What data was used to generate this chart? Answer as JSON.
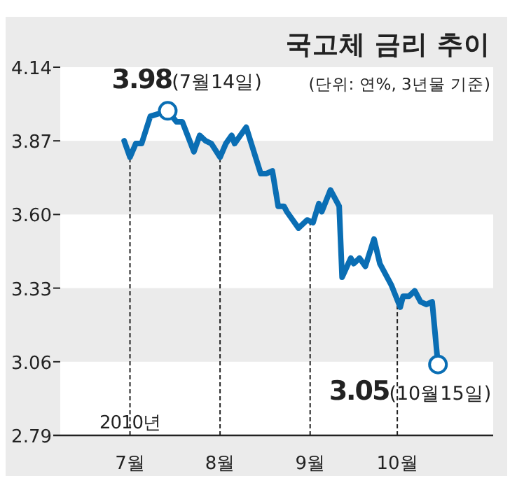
{
  "chart_data": {
    "type": "line",
    "title": "국고체 금리 추이",
    "subtitle": "(단위: 연%, 3년물 기준)",
    "x": [
      "2010-06-29",
      "2010-07-01",
      "2010-07-03",
      "2010-07-05",
      "2010-07-08",
      "2010-07-11",
      "2010-07-14",
      "2010-07-17",
      "2010-07-19",
      "2010-07-23",
      "2010-07-25",
      "2010-07-27",
      "2010-07-29",
      "2010-08-01",
      "2010-08-03",
      "2010-08-05",
      "2010-08-06",
      "2010-08-10",
      "2010-08-15",
      "2010-08-17",
      "2010-08-19",
      "2010-08-21",
      "2010-08-23",
      "2010-08-24",
      "2010-08-28",
      "2010-08-31",
      "2010-09-02",
      "2010-09-04",
      "2010-09-05",
      "2010-09-08",
      "2010-09-11",
      "2010-09-12",
      "2010-09-15",
      "2010-09-16",
      "2010-09-18",
      "2010-09-20",
      "2010-09-23",
      "2010-09-25",
      "2010-09-29",
      "2010-10-02",
      "2010-10-03",
      "2010-10-05",
      "2010-10-07",
      "2010-10-09",
      "2010-10-11",
      "2010-10-13",
      "2010-10-15"
    ],
    "series": [
      {
        "color": "#0a6eb4",
        "values": [
          3.87,
          3.81,
          3.86,
          3.86,
          3.96,
          3.97,
          3.98,
          3.94,
          3.94,
          3.83,
          3.89,
          3.87,
          3.86,
          3.81,
          3.86,
          3.89,
          3.86,
          3.92,
          3.75,
          3.75,
          3.76,
          3.63,
          3.63,
          3.61,
          3.55,
          3.58,
          3.57,
          3.64,
          3.61,
          3.69,
          3.63,
          3.37,
          3.44,
          3.42,
          3.44,
          3.41,
          3.51,
          3.42,
          3.34,
          3.26,
          3.3,
          3.3,
          3.32,
          3.28,
          3.27,
          3.28,
          3.05
        ]
      }
    ],
    "xlim": [
      "2010-06-07",
      "2010-11-03"
    ],
    "xticks": [
      {
        "value": "2010-07-01",
        "label": "7월"
      },
      {
        "value": "2010-08-01",
        "label": "8월"
      },
      {
        "value": "2010-09-01",
        "label": "9월"
      },
      {
        "value": "2010-10-01",
        "label": "10월"
      }
    ],
    "ylim": [
      2.79,
      4.14
    ],
    "yticks": [
      4.14,
      3.87,
      {
        "value": 3.6,
        "label": "3.60"
      },
      3.33,
      3.06,
      2.79
    ],
    "bands": [
      {
        "axis": "y",
        "from": 3.6,
        "to": 3.87,
        "color": "#ebebeb"
      },
      {
        "axis": "y",
        "from": 3.06,
        "to": 3.33,
        "color": "#ebebeb"
      }
    ],
    "grid": "x",
    "marker": "none",
    "line_style": "solid",
    "annotations": [
      {
        "text": "**3.98**(7월14일)",
        "x": "2010-07-14",
        "y": 3.98
      },
      {
        "text": "**3.05**(10월15일)",
        "x": "2010-10-15",
        "y": 3.05
      },
      "2010년"
    ]
  }
}
